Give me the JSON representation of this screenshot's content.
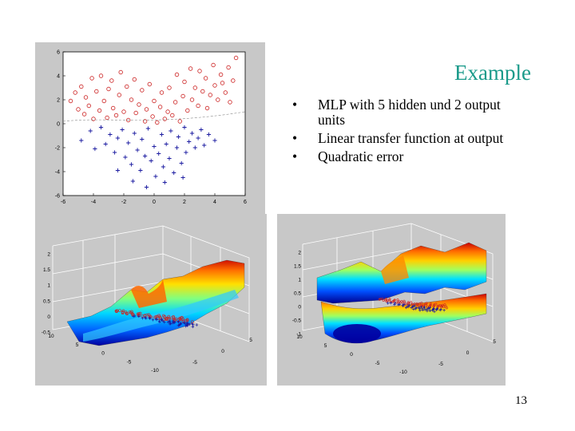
{
  "slide": {
    "title": "Example",
    "bullets": [
      "MLP with 5 hidden und 2 output units",
      "Linear transfer function at output",
      "Quadratic error"
    ],
    "page_number": "13"
  },
  "colors": {
    "title": "#1a9a8a",
    "figure_bg": "#c8c8c8",
    "class_circle": "#cc2222",
    "class_plus": "#1a1aa0"
  },
  "chart_data": [
    {
      "type": "scatter",
      "xlim": [
        -6,
        6
      ],
      "ylim": [
        -6,
        6
      ],
      "xticks": [
        "-6",
        "-4",
        "-2",
        "0",
        "2",
        "4",
        "6"
      ],
      "yticks": [
        "6",
        "4",
        "2",
        "0",
        "-2",
        "-4",
        "-6"
      ],
      "series": [
        {
          "marker": "circle",
          "color": "#cc2222",
          "points": [
            [
              -5.5,
              1.9
            ],
            [
              -5.2,
              2.6
            ],
            [
              -5.0,
              1.2
            ],
            [
              -4.8,
              3.1
            ],
            [
              -4.6,
              0.8
            ],
            [
              -4.5,
              2.2
            ],
            [
              -4.3,
              1.5
            ],
            [
              -4.1,
              3.8
            ],
            [
              -4.0,
              0.4
            ],
            [
              -3.8,
              2.7
            ],
            [
              -3.6,
              1.1
            ],
            [
              -3.5,
              4.0
            ],
            [
              -3.3,
              1.9
            ],
            [
              -3.1,
              0.5
            ],
            [
              -3.0,
              2.9
            ],
            [
              -2.8,
              3.6
            ],
            [
              -2.7,
              1.3
            ],
            [
              -2.5,
              0.7
            ],
            [
              -2.3,
              2.4
            ],
            [
              -2.2,
              4.3
            ],
            [
              -2.0,
              1.0
            ],
            [
              -1.8,
              3.1
            ],
            [
              -1.7,
              0.3
            ],
            [
              -1.5,
              2.0
            ],
            [
              -1.3,
              3.7
            ],
            [
              -1.2,
              0.9
            ],
            [
              -1.0,
              1.6
            ],
            [
              -0.8,
              2.8
            ],
            [
              -0.6,
              0.2
            ],
            [
              -0.5,
              1.2
            ],
            [
              -0.3,
              3.3
            ],
            [
              -0.1,
              0.6
            ],
            [
              0.0,
              1.9
            ],
            [
              0.2,
              0.1
            ],
            [
              0.4,
              1.4
            ],
            [
              0.5,
              2.6
            ],
            [
              0.7,
              0.4
            ],
            [
              0.9,
              1.0
            ],
            [
              1.0,
              3.0
            ],
            [
              1.2,
              0.7
            ],
            [
              1.4,
              1.8
            ],
            [
              1.5,
              4.1
            ],
            [
              1.7,
              0.2
            ],
            [
              1.9,
              2.3
            ],
            [
              2.0,
              3.5
            ],
            [
              2.2,
              1.1
            ],
            [
              2.4,
              4.6
            ],
            [
              2.5,
              2.0
            ],
            [
              2.7,
              3.0
            ],
            [
              2.9,
              1.5
            ],
            [
              3.0,
              4.4
            ],
            [
              3.2,
              2.7
            ],
            [
              3.4,
              3.8
            ],
            [
              3.5,
              1.3
            ],
            [
              3.7,
              2.4
            ],
            [
              3.9,
              4.9
            ],
            [
              4.0,
              3.2
            ],
            [
              4.2,
              2.0
            ],
            [
              4.4,
              4.1
            ],
            [
              4.5,
              3.4
            ],
            [
              4.7,
              2.6
            ],
            [
              4.9,
              4.7
            ],
            [
              5.0,
              1.8
            ],
            [
              5.2,
              3.6
            ],
            [
              5.4,
              5.5
            ]
          ]
        },
        {
          "marker": "plus",
          "color": "#1a1aa0",
          "points": [
            [
              -4.8,
              -1.4
            ],
            [
              -4.2,
              -0.6
            ],
            [
              -3.9,
              -2.1
            ],
            [
              -3.5,
              -0.3
            ],
            [
              -3.2,
              -1.7
            ],
            [
              -2.9,
              -0.9
            ],
            [
              -2.6,
              -2.4
            ],
            [
              -2.4,
              -1.2
            ],
            [
              -2.1,
              -0.5
            ],
            [
              -1.9,
              -2.8
            ],
            [
              -1.7,
              -1.6
            ],
            [
              -1.5,
              -3.4
            ],
            [
              -1.3,
              -0.8
            ],
            [
              -1.1,
              -2.2
            ],
            [
              -0.9,
              -3.9
            ],
            [
              -0.8,
              -1.3
            ],
            [
              -0.6,
              -2.7
            ],
            [
              -0.4,
              -0.4
            ],
            [
              -0.2,
              -3.1
            ],
            [
              0.0,
              -1.9
            ],
            [
              0.1,
              -4.4
            ],
            [
              0.3,
              -2.5
            ],
            [
              0.5,
              -0.9
            ],
            [
              0.6,
              -3.6
            ],
            [
              0.8,
              -1.7
            ],
            [
              1.0,
              -2.9
            ],
            [
              1.1,
              -0.6
            ],
            [
              1.3,
              -4.1
            ],
            [
              1.5,
              -2.0
            ],
            [
              1.6,
              -1.1
            ],
            [
              1.8,
              -3.3
            ],
            [
              2.0,
              -0.3
            ],
            [
              2.1,
              -2.4
            ],
            [
              2.3,
              -1.5
            ],
            [
              2.5,
              -0.8
            ],
            [
              2.7,
              -2.0
            ],
            [
              2.9,
              -1.2
            ],
            [
              3.1,
              -0.5
            ],
            [
              3.3,
              -1.8
            ],
            [
              3.6,
              -0.9
            ],
            [
              4.0,
              -1.4
            ],
            [
              -1.4,
              -4.8
            ],
            [
              -0.5,
              -5.3
            ],
            [
              0.7,
              -4.9
            ],
            [
              1.9,
              -4.5
            ],
            [
              -2.4,
              -3.9
            ]
          ]
        }
      ]
    },
    {
      "type": "surface",
      "xlim": [
        -10,
        10
      ],
      "ylim": [
        -10,
        5
      ],
      "zlim": [
        -0.5,
        2
      ],
      "xticks": [
        "10",
        "5",
        "0",
        "-5",
        "-10"
      ],
      "yticks": [
        "-5",
        "0",
        "5"
      ],
      "zticks": [
        "2",
        "1.5",
        "1",
        "0.5",
        "0",
        "-0.5"
      ]
    },
    {
      "type": "surface",
      "xlim": [
        -10,
        10
      ],
      "ylim": [
        -10,
        5
      ],
      "zlim": [
        -1,
        2
      ],
      "xticks": [
        "10",
        "5",
        "0",
        "-5",
        "-10"
      ],
      "yticks": [
        "-5",
        "0",
        "5"
      ],
      "zticks": [
        "2",
        "1.5",
        "1",
        "0.5",
        "0",
        "-0.5",
        "-1"
      ]
    }
  ]
}
